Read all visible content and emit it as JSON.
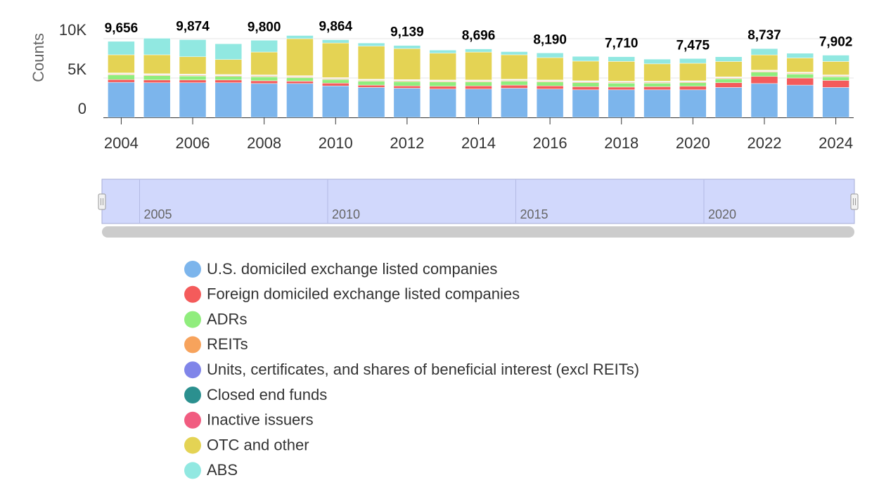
{
  "chart_data": {
    "type": "stacked_bar",
    "y_label": "Counts",
    "categories": [
      "2004",
      null,
      "2006",
      null,
      "2008",
      null,
      "2010",
      null,
      "2012",
      null,
      "2014",
      null,
      "2016",
      null,
      "2018",
      null,
      "2020",
      null,
      "2022",
      null,
      "2024"
    ],
    "ylim": [
      0,
      10000
    ],
    "yticks": [
      {
        "value": 0,
        "label": "0"
      },
      {
        "value": 5000,
        "label": "5K"
      },
      {
        "value": 10000,
        "label": "10K"
      }
    ],
    "grid": true,
    "series": [
      {
        "name": "U.S. domiciled exchange listed companies",
        "color": "#7cb5ec",
        "values": [
          4450,
          4400,
          4400,
          4400,
          4300,
          4300,
          4000,
          3800,
          3700,
          3600,
          3600,
          3700,
          3600,
          3500,
          3500,
          3500,
          3500,
          3800,
          4300,
          4100,
          3800
        ]
      },
      {
        "name": "Foreign domiciled exchange listed companies",
        "color": "#f45b5b",
        "values": [
          350,
          350,
          350,
          350,
          350,
          300,
          350,
          300,
          300,
          350,
          400,
          400,
          400,
          400,
          350,
          400,
          450,
          600,
          900,
          900,
          900
        ]
      },
      {
        "name": "ADRs",
        "color": "#90ed7d",
        "values": [
          600,
          550,
          500,
          450,
          500,
          450,
          450,
          500,
          550,
          550,
          500,
          500,
          500,
          500,
          500,
          450,
          450,
          500,
          550,
          500,
          450
        ]
      },
      {
        "name": "REITs",
        "color": "#f7a35c",
        "values": [
          100,
          100,
          100,
          100,
          100,
          100,
          100,
          100,
          100,
          100,
          100,
          100,
          100,
          100,
          100,
          100,
          100,
          100,
          100,
          100,
          100
        ]
      },
      {
        "name": "Units, certificates, and shares of beneficial interest (excl REITs)",
        "color": "#8085e9",
        "values": [
          50,
          50,
          50,
          50,
          50,
          50,
          50,
          50,
          50,
          50,
          50,
          50,
          50,
          50,
          50,
          50,
          50,
          50,
          50,
          50,
          50
        ]
      },
      {
        "name": "Closed end funds",
        "color": "#2b908f",
        "values": [
          50,
          50,
          50,
          50,
          50,
          50,
          50,
          50,
          50,
          50,
          50,
          50,
          50,
          50,
          50,
          50,
          50,
          50,
          50,
          50,
          50
        ]
      },
      {
        "name": "Inactive issuers",
        "color": "#f15c80",
        "values": [
          50,
          50,
          50,
          50,
          50,
          50,
          50,
          50,
          50,
          50,
          50,
          50,
          50,
          50,
          50,
          50,
          50,
          50,
          50,
          50,
          50
        ]
      },
      {
        "name": "OTC and other",
        "color": "#e4d354",
        "values": [
          2300,
          2400,
          2200,
          1900,
          2900,
          4700,
          4400,
          4200,
          3939,
          3400,
          3546,
          3100,
          2840,
          2500,
          2510,
          2200,
          2225,
          1950,
          1937,
          1800,
          1702
        ]
      },
      {
        "name": "ABS",
        "color": "#91e8e1",
        "values": [
          1706,
          2100,
          2174,
          2000,
          1500,
          400,
          414,
          400,
          400,
          400,
          400,
          400,
          600,
          600,
          600,
          600,
          600,
          600,
          800,
          600,
          800
        ]
      }
    ],
    "totals": [
      9656,
      null,
      9874,
      null,
      9800,
      null,
      9864,
      null,
      9139,
      null,
      8696,
      null,
      8190,
      null,
      7710,
      null,
      7475,
      null,
      8737,
      null,
      7902
    ],
    "total_labels": [
      "9,656",
      null,
      "9,874",
      null,
      "9,800",
      null,
      "9,864",
      null,
      "9,139",
      null,
      "8,696",
      null,
      "8,190",
      null,
      "7,710",
      null,
      "7,475",
      null,
      "8,737",
      null,
      "7,902"
    ],
    "navigator": {
      "xlim": [
        2004,
        2024
      ],
      "xticks": [
        2005,
        2010,
        2015,
        2020
      ]
    }
  }
}
